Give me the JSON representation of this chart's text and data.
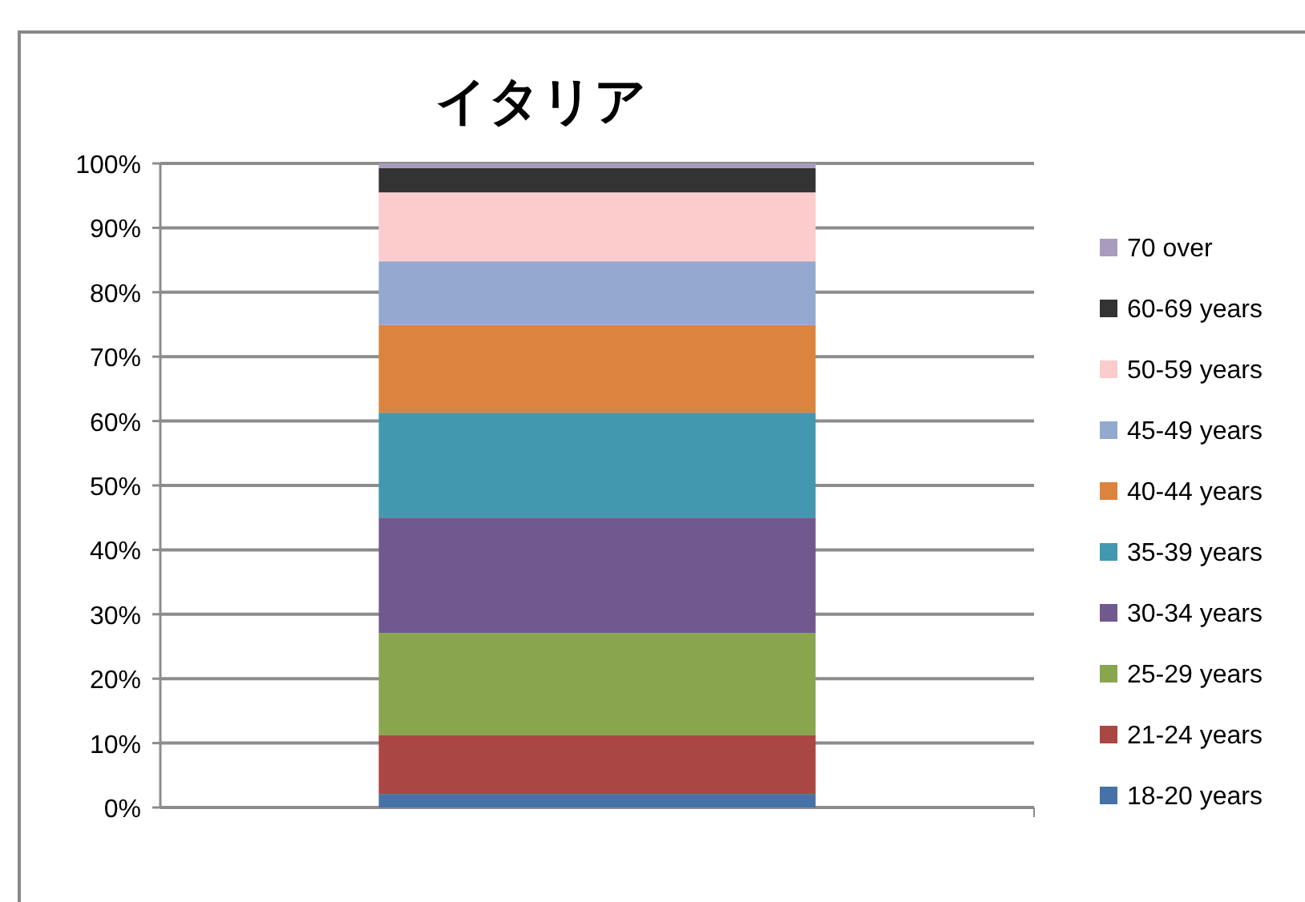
{
  "chart_data": {
    "type": "bar",
    "stacked": true,
    "title": "イタリア",
    "categories": [
      null
    ],
    "series": [
      {
        "name": "18-20 years",
        "color": "#4572a7",
        "values": [
          2.1
        ]
      },
      {
        "name": "21-24 years",
        "color": "#aa4643",
        "values": [
          9.1
        ]
      },
      {
        "name": "25-29 years",
        "color": "#89a54e",
        "values": [
          15.9
        ]
      },
      {
        "name": "30-34 years",
        "color": "#71588f",
        "values": [
          17.9
        ]
      },
      {
        "name": "35-39 years",
        "color": "#4198af",
        "values": [
          16.3
        ]
      },
      {
        "name": "40-44 years",
        "color": "#db843d",
        "values": [
          13.6
        ]
      },
      {
        "name": "45-49 years",
        "color": "#93a9cf",
        "values": [
          9.9
        ]
      },
      {
        "name": "50-59 years",
        "color": "#fccbcb",
        "values": [
          10.7
        ]
      },
      {
        "name": "60-69 years",
        "color": "#333333",
        "values": [
          3.8
        ]
      },
      {
        "name": "70 over",
        "color": "#a99bbd",
        "values": [
          0.7
        ]
      }
    ],
    "ylim": [
      0,
      100
    ],
    "yticks": [
      {
        "value": 0,
        "label": "0%"
      },
      {
        "value": 10,
        "label": "10%"
      },
      {
        "value": 20,
        "label": "20%"
      },
      {
        "value": 30,
        "label": "30%"
      },
      {
        "value": 40,
        "label": "40%"
      },
      {
        "value": 50,
        "label": "50%"
      },
      {
        "value": 60,
        "label": "60%"
      },
      {
        "value": 70,
        "label": "70%"
      },
      {
        "value": 80,
        "label": "80%"
      },
      {
        "value": 90,
        "label": "90%"
      },
      {
        "value": 100,
        "label": "100%"
      }
    ],
    "grid": "y",
    "legend": "right"
  }
}
